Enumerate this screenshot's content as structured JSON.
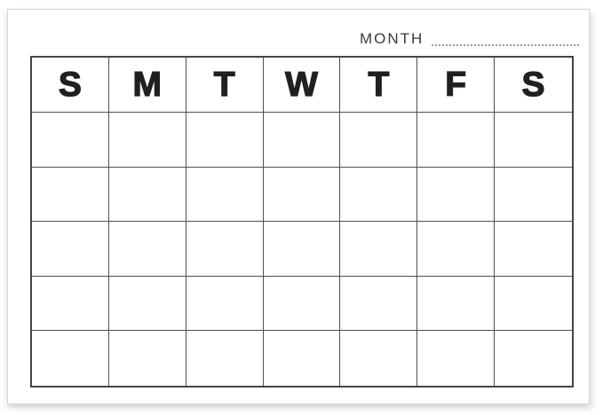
{
  "header": {
    "month_label": "MONTH"
  },
  "calendar": {
    "day_headers": [
      "S",
      "M",
      "T",
      "W",
      "T",
      "F",
      "S"
    ],
    "columns": 7,
    "body_rows": 5
  },
  "colors": {
    "paper": "#ffffff",
    "grid_line": "#4f4f4f",
    "grid_outer_border": "#454545",
    "day_header_text": "#231f20",
    "month_label_text": "#3a3a3a",
    "dotted_line": "#9a9a9a"
  }
}
